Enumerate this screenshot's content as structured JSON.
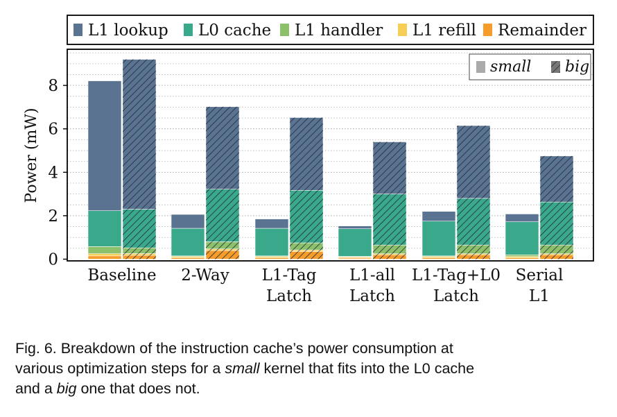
{
  "chart_data": {
    "type": "bar",
    "subtype": "stacked-grouped",
    "ylabel": "Power (mW)",
    "xlabel": "",
    "ylim": [
      0,
      9.5
    ],
    "yticks": [
      "0",
      "2",
      "4",
      "6",
      "8"
    ],
    "ytick_values": [
      0,
      2,
      4,
      6,
      8
    ],
    "grid": true,
    "categories": [
      [
        "Baseline"
      ],
      [
        "2-Way"
      ],
      [
        "L1-Tag",
        "Latch"
      ],
      [
        "L1-all",
        "Latch"
      ],
      [
        "L1-Tag+L0",
        "Latch"
      ],
      [
        "Serial",
        "L1"
      ]
    ],
    "components": [
      "Remainder",
      "L1 refill",
      "L1 handler",
      "L0 cache",
      "L1 lookup"
    ],
    "component_colors": {
      "L1 lookup": "#5a7391",
      "L0 cache": "#3aa88a",
      "L1 handler": "#8cc06a",
      "L1 refill": "#f6cd55",
      "Remainder": "#f59c2a"
    },
    "legend": {
      "position": "top",
      "entries": [
        "L1 lookup",
        "L0 cache",
        "L1 handler",
        "L1 refill",
        "Remainder"
      ]
    },
    "pattern_legend": {
      "position": "top-right",
      "entries": [
        "small",
        "big"
      ]
    },
    "series": [
      {
        "name": "small",
        "stacks": [
          {
            "Remainder": 0.15,
            "L1 refill": 0.1,
            "L1 handler": 0.33,
            "L0 cache": 1.65,
            "L1 lookup": 5.98
          },
          {
            "Remainder": 0.06,
            "L1 refill": 0.06,
            "L1 handler": 0.03,
            "L0 cache": 1.27,
            "L1 lookup": 0.64
          },
          {
            "Remainder": 0.06,
            "L1 refill": 0.06,
            "L1 handler": 0.03,
            "L0 cache": 1.27,
            "L1 lookup": 0.43
          },
          {
            "Remainder": 0.05,
            "L1 refill": 0.05,
            "L1 handler": 0.03,
            "L0 cache": 1.27,
            "L1 lookup": 0.13
          },
          {
            "Remainder": 0.06,
            "L1 refill": 0.06,
            "L1 handler": 0.03,
            "L0 cache": 1.6,
            "L1 lookup": 0.45
          },
          {
            "Remainder": 0.06,
            "L1 refill": 0.06,
            "L1 handler": 0.08,
            "L0 cache": 1.52,
            "L1 lookup": 0.36
          }
        ]
      },
      {
        "name": "big",
        "stacks": [
          {
            "Remainder": 0.18,
            "L1 refill": 0.08,
            "L1 handler": 0.26,
            "L0 cache": 1.78,
            "L1 lookup": 6.9
          },
          {
            "Remainder": 0.4,
            "L1 refill": 0.07,
            "L1 handler": 0.33,
            "L0 cache": 2.42,
            "L1 lookup": 3.8
          },
          {
            "Remainder": 0.35,
            "L1 refill": 0.07,
            "L1 handler": 0.33,
            "L0 cache": 2.42,
            "L1 lookup": 3.35
          },
          {
            "Remainder": 0.2,
            "L1 refill": 0.05,
            "L1 handler": 0.4,
            "L0 cache": 2.35,
            "L1 lookup": 2.4
          },
          {
            "Remainder": 0.2,
            "L1 refill": 0.05,
            "L1 handler": 0.4,
            "L0 cache": 2.15,
            "L1 lookup": 3.35
          },
          {
            "Remainder": 0.2,
            "L1 refill": 0.05,
            "L1 handler": 0.4,
            "L0 cache": 1.98,
            "L1 lookup": 2.12
          }
        ]
      }
    ]
  },
  "caption": {
    "line1": "Fig. 6. Breakdown of the instruction cache’s power consumption at",
    "line2_pre": "various optimization steps for a ",
    "line2_em": "small",
    "line2_post": " kernel that fits into the L0 cache",
    "line3_pre": "and a ",
    "line3_em": "big",
    "line3_post": " one that does not."
  }
}
